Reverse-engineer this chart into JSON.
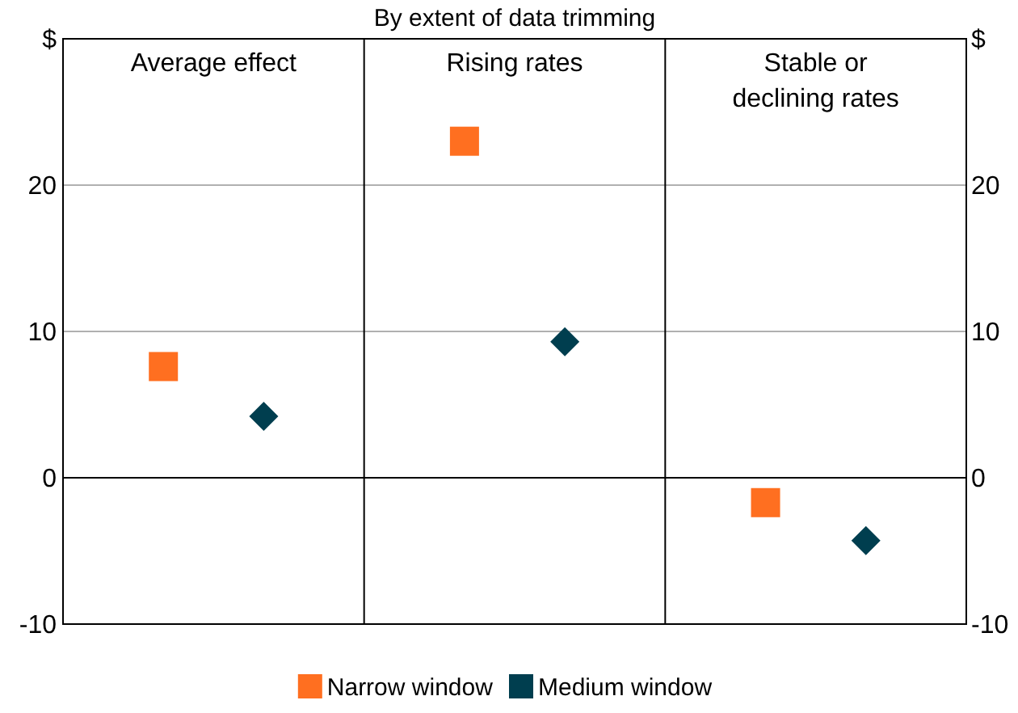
{
  "chart_data": {
    "type": "scatter",
    "title": "By extent of data trimming",
    "categories": [
      "Average effect",
      "Rising rates",
      "Stable or declining rates"
    ],
    "series": [
      {
        "name": "Narrow window",
        "color": "#ff6f20",
        "marker": "square",
        "values": [
          7.6,
          23.0,
          -1.7
        ]
      },
      {
        "name": "Medium window",
        "color": "#003e4f",
        "marker": "diamond",
        "values": [
          4.2,
          9.3,
          -4.3
        ]
      }
    ],
    "ylim": [
      -10,
      30
    ],
    "yticks": [
      -10,
      0,
      10,
      20,
      {
        "value": 30,
        "label": "$"
      }
    ],
    "y2lim": [
      -10,
      30
    ],
    "y2ticks": [
      -10,
      0,
      10,
      20,
      {
        "value": 30,
        "label": "$"
      }
    ],
    "grid": "y",
    "legend": "bottom"
  }
}
